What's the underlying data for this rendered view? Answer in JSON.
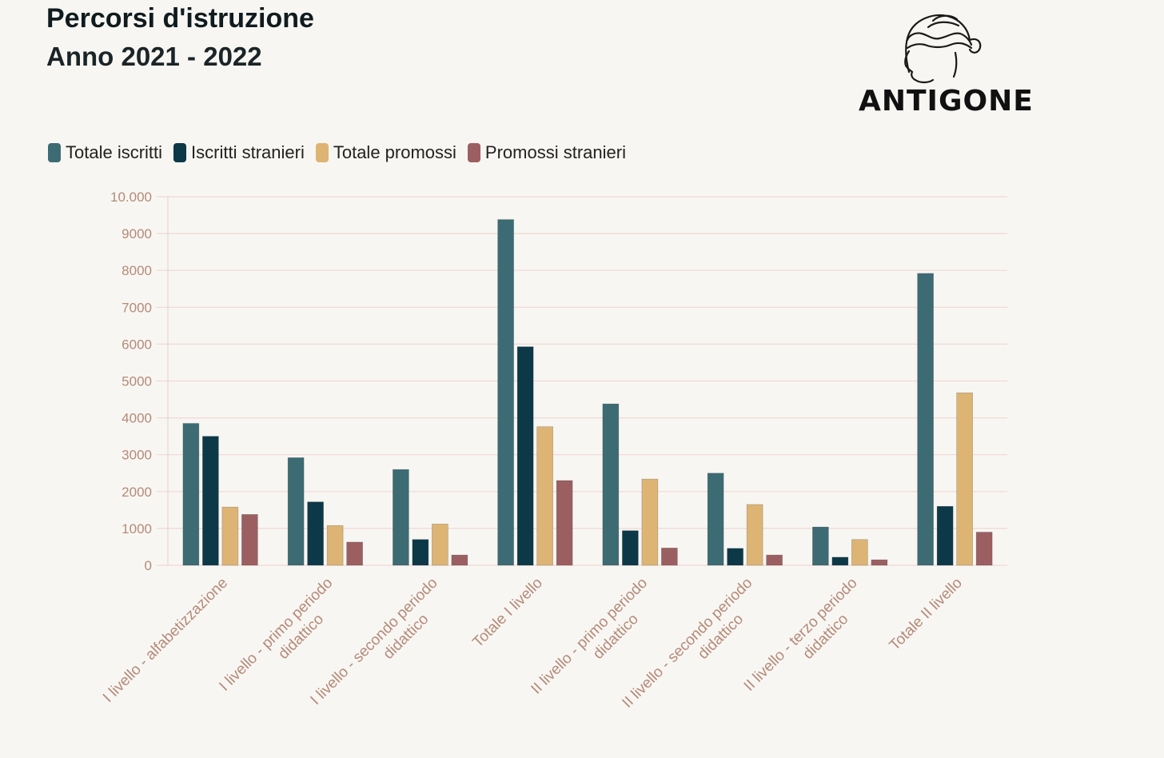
{
  "header": {
    "title": "Percorsi d'istruzione",
    "subtitle": "Anno 2021 - 2022"
  },
  "logo": {
    "text": "ANTIGONE"
  },
  "colors": {
    "totale_iscritti": "#3d6b74",
    "iscritti_stranieri": "#0d3848",
    "totale_promossi": "#ddb474",
    "promossi_stranieri": "#9c5f61",
    "gridline": "#f0d7d3",
    "tick_label": "#b48a7a"
  },
  "chart_data": {
    "type": "bar",
    "title": "",
    "xlabel": "",
    "ylabel": "",
    "ylim": [
      0,
      10000
    ],
    "yticks": [
      0,
      1000,
      2000,
      3000,
      4000,
      5000,
      6000,
      7000,
      8000,
      9000,
      10000
    ],
    "ytick_labels": [
      "0",
      "1000",
      "2000",
      "3000",
      "4000",
      "5000",
      "6000",
      "7000",
      "8000",
      "9000",
      "10.000"
    ],
    "legend_position": "top-left",
    "grid": true,
    "categories": [
      "I livello - alfabetizzazione",
      "I livello - primo periodo didattico",
      "I livello - secondo periodo didattico",
      "Totale I livello",
      "II livello - primo periodo didattico",
      "II livello - secondo periodo didattico",
      "II livello - terzo periodo didattico",
      "Totale II livello"
    ],
    "series": [
      {
        "name": "Totale iscritti",
        "values": [
          3850,
          2920,
          2600,
          9380,
          4380,
          2500,
          1040,
          7920
        ]
      },
      {
        "name": "Iscritti stranieri",
        "values": [
          3500,
          1720,
          700,
          5930,
          940,
          460,
          220,
          1600
        ]
      },
      {
        "name": "Totale promossi",
        "values": [
          1580,
          1080,
          1120,
          3760,
          2340,
          1650,
          700,
          4680
        ]
      },
      {
        "name": "Promossi stranieri",
        "values": [
          1380,
          630,
          280,
          2300,
          470,
          280,
          150,
          900
        ]
      }
    ]
  }
}
